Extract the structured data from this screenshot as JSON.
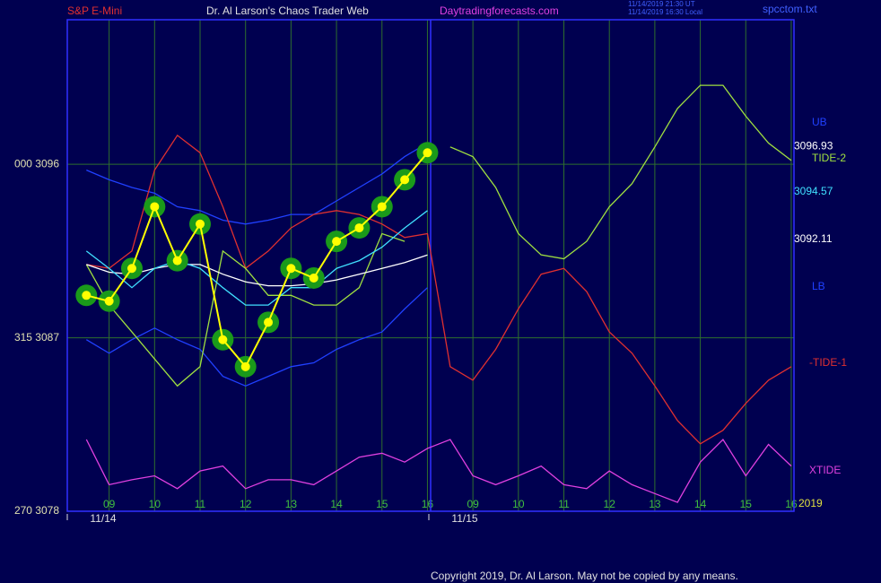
{
  "chart_data": {
    "type": "line",
    "title": "Dr. Al Larson's Chaos Trader Web",
    "symbol": "S&P E-Mini",
    "website": "Daytradingforecasts.com",
    "timestamps": [
      "11/14/2019 21:30 UT",
      "11/14/2019 16:30 Local"
    ],
    "file": "spcctom.txt",
    "copyright": "Copyright 2019, Dr. Al Larson. May not be copied by any means.",
    "date_labels": [
      "11/14",
      "11/15"
    ],
    "year_label": "2019",
    "grid": true,
    "x": [
      0.5,
      1,
      1.5,
      2,
      2.5,
      3,
      3.5,
      4,
      4.5,
      5,
      5.5,
      6,
      6.5,
      7,
      7.5,
      8,
      8.5,
      9,
      9.5,
      10,
      10.5,
      11,
      11.5,
      12,
      12.5,
      13,
      13.5,
      14,
      14.5,
      15,
      15.5,
      16
    ],
    "xlim": [
      0.08,
      16.06
    ],
    "xticks": [
      {
        "value": 1,
        "label": "09"
      },
      {
        "value": 2,
        "label": "10"
      },
      {
        "value": 3,
        "label": "11"
      },
      {
        "value": 4,
        "label": "12"
      },
      {
        "value": 5,
        "label": "13"
      },
      {
        "value": 6,
        "label": "14"
      },
      {
        "value": 7,
        "label": "15"
      },
      {
        "value": 8,
        "label": "16"
      },
      {
        "value": 9,
        "label": "09"
      },
      {
        "value": 10,
        "label": "10"
      },
      {
        "value": 11,
        "label": "11"
      },
      {
        "value": 12,
        "label": "12"
      },
      {
        "value": 13,
        "label": "13"
      },
      {
        "value": 14,
        "label": "14"
      },
      {
        "value": 15,
        "label": "15"
      },
      {
        "value": 16,
        "label": "16"
      }
    ],
    "ylim": [
      3078,
      3103.5
    ],
    "yticks": [
      {
        "value": 3096,
        "label": "000  3096"
      },
      {
        "value": 3087,
        "label": "315  3087"
      },
      {
        "value": 3078,
        "label": "270  3078"
      }
    ],
    "y2lim": [
      0,
      500
    ],
    "level_labels": [
      {
        "value": 3096.93,
        "color": "#ffffff"
      },
      {
        "value": 3094.57,
        "color": "#40e0ff"
      },
      {
        "value": 3092.11,
        "color": "#ffffff"
      }
    ],
    "series": [
      {
        "color": "#ffff00",
        "values": [
          3089.2,
          3088.9,
          3090.6,
          3093.8,
          3091.0,
          3092.9,
          3086.9,
          3085.5,
          3087.8,
          3090.6,
          3090.1,
          3092.0,
          3092.7,
          3093.8,
          3095.2,
          3096.6,
          null,
          null,
          null,
          null,
          null,
          null,
          null,
          null,
          null,
          null,
          null,
          null,
          null,
          null,
          null,
          null
        ]
      },
      {
        "color": "#40e0ff",
        "values": [
          3091.5,
          3090.6,
          3089.6,
          3090.6,
          3091.0,
          3090.6,
          3089.6,
          3088.7,
          3088.7,
          3089.6,
          3089.6,
          3090.6,
          3091.0,
          3091.7,
          3092.7,
          3093.6,
          null,
          null,
          null,
          null,
          null,
          null,
          null,
          null,
          null,
          null,
          null,
          null,
          null,
          null,
          null,
          null
        ]
      },
      {
        "color": "#ffffff",
        "values": [
          3090.8,
          3090.4,
          3090.3,
          3090.6,
          3090.8,
          3090.8,
          3090.3,
          3089.9,
          3089.7,
          3089.7,
          3089.8,
          3090.0,
          3090.3,
          3090.6,
          3090.9,
          3091.3,
          null,
          null,
          null,
          null,
          null,
          null,
          null,
          null,
          null,
          null,
          null,
          null,
          null,
          null,
          null,
          null
        ]
      },
      {
        "name": "UB",
        "color": "#2040ff",
        "values": [
          3095.7,
          3095.2,
          3094.8,
          3094.5,
          3093.8,
          3093.6,
          3093.1,
          3092.9,
          3093.1,
          3093.4,
          3093.4,
          3094.1,
          3094.8,
          3095.5,
          3096.4,
          3097.1,
          null,
          null,
          null,
          null,
          null,
          null,
          null,
          null,
          null,
          null,
          null,
          null,
          null,
          null,
          null,
          null
        ]
      },
      {
        "name": "LB",
        "color": "#2040ff",
        "values": [
          3086.9,
          3086.2,
          3086.9,
          3087.5,
          3086.9,
          3086.4,
          3085.0,
          3084.5,
          3085.0,
          3085.5,
          3085.7,
          3086.4,
          3086.9,
          3087.3,
          3088.5,
          3089.6,
          null,
          null,
          null,
          null,
          null,
          null,
          null,
          null,
          null,
          null,
          null,
          null,
          null,
          null,
          null,
          null
        ]
      },
      {
        "name": "TIDE-2",
        "color": "#a0e040",
        "values": [
          3090.8,
          3088.7,
          3087.3,
          3085.9,
          3084.5,
          3085.5,
          3091.5,
          3090.6,
          3089.2,
          3089.2,
          3088.7,
          3088.7,
          3089.6,
          3092.4,
          3092.0,
          null,
          3096.9,
          3096.4,
          3094.8,
          3092.4,
          3091.3,
          3091.1,
          3092.0,
          3093.8,
          3095.0,
          3096.9,
          3098.9,
          3100.1,
          3100.1,
          3098.5,
          3097.1,
          3096.2
        ]
      },
      {
        "name": "-TIDE-1",
        "color": "#e03030",
        "values": [
          3090.8,
          3090.6,
          3091.5,
          3095.7,
          3097.5,
          3096.6,
          3093.8,
          3090.6,
          3091.5,
          3092.7,
          3093.4,
          3093.6,
          3093.4,
          3092.9,
          3092.2,
          3092.4,
          3085.5,
          3084.8,
          3086.4,
          3088.5,
          3090.3,
          3090.6,
          3089.4,
          3087.3,
          3086.2,
          3084.5,
          3082.7,
          3081.5,
          3082.2,
          3083.6,
          3084.8,
          3085.5
        ]
      },
      {
        "name": "XTIDE",
        "color": "#e040e0",
        "axis": "y2",
        "values": [
          73,
          27,
          32,
          36,
          23,
          41,
          46,
          23,
          32,
          32,
          27,
          41,
          55,
          59,
          50,
          64,
          73,
          36,
          27,
          36,
          46,
          27,
          23,
          41,
          27,
          18,
          9,
          50,
          73,
          36,
          68,
          46
        ]
      }
    ]
  }
}
